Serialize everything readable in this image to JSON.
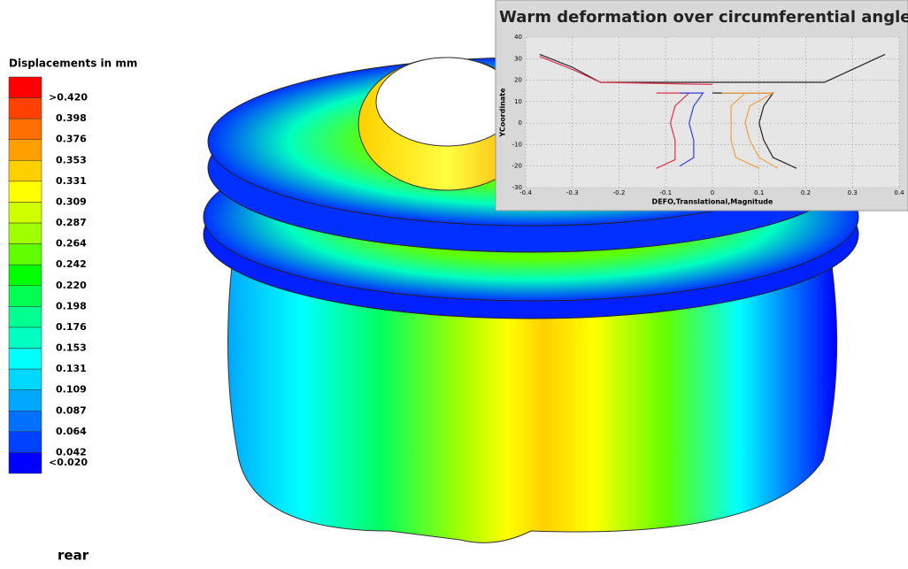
{
  "legend": {
    "title": "Displacements in mm",
    "labels": [
      ">0.420",
      "0.398",
      "0.376",
      "0.353",
      "0.331",
      "0.309",
      "0.287",
      "0.264",
      "0.242",
      "0.220",
      "0.198",
      "0.176",
      "0.153",
      "0.131",
      "0.109",
      "0.087",
      "0.064",
      "0.042",
      "<0.020"
    ],
    "colors": [
      "#ff0000",
      "#ff4000",
      "#ff7000",
      "#ffa000",
      "#ffd000",
      "#ffff00",
      "#d0ff00",
      "#a0ff00",
      "#60ff00",
      "#00ff00",
      "#00ff50",
      "#00ff90",
      "#00ffc0",
      "#00ffff",
      "#00d8ff",
      "#00a8ff",
      "#0070ff",
      "#0040ff",
      "#0000ff"
    ]
  },
  "view_label": "rear",
  "chart_data": {
    "type": "line",
    "title": "Warm deformation over circumferential angle",
    "xlabel": "DEFO,Translational,Magnitude",
    "ylabel": "YCoordinate",
    "xlim": [
      -0.4,
      0.4
    ],
    "ylim": [
      -30,
      40
    ],
    "xticks": [
      -0.4,
      -0.3,
      -0.2,
      -0.1,
      0,
      0.1,
      0.2,
      0.3,
      0.4
    ],
    "yticks": [
      -30,
      -20,
      -10,
      0,
      10,
      20,
      30,
      40
    ],
    "grid": true,
    "series": [
      {
        "color": "#222222",
        "x": [
          -0.37,
          -0.3,
          -0.24,
          0,
          0.24,
          0.3,
          0.37
        ],
        "values": [
          32,
          26,
          19,
          19,
          19,
          25,
          32
        ]
      },
      {
        "color": "#e0304a",
        "x": [
          -0.37,
          -0.3,
          -0.24,
          0
        ],
        "values": [
          31,
          25,
          19,
          18
        ]
      },
      {
        "color": "#222222",
        "x": [
          0,
          0.13,
          0.11,
          0.1,
          0.11,
          0.13,
          0.18
        ],
        "values": [
          14,
          14,
          8,
          0,
          -8,
          -16,
          -21
        ]
      },
      {
        "color": "#e0304a",
        "x": [
          -0.12,
          -0.05,
          -0.08,
          -0.09,
          -0.08,
          -0.08,
          -0.12
        ],
        "values": [
          14,
          14,
          8,
          0,
          -8,
          -17,
          -21
        ]
      },
      {
        "color": "#3040e0",
        "x": [
          -0.07,
          -0.02,
          -0.04,
          -0.05,
          -0.04,
          -0.04,
          -0.07
        ],
        "values": [
          14,
          14,
          8,
          0,
          -8,
          -16,
          -20
        ]
      },
      {
        "color": "#f0a040",
        "x": [
          0.02,
          0.07,
          0.04,
          0.04,
          0.04,
          0.05,
          0.1
        ],
        "values": [
          14,
          14,
          8,
          0,
          -8,
          -16,
          -21
        ]
      },
      {
        "color": "#f0a040",
        "x": [
          0.07,
          0.13,
          0.08,
          0.07,
          0.08,
          0.1,
          0.14
        ],
        "values": [
          14,
          14,
          8,
          0,
          -8,
          -16,
          -21
        ]
      }
    ]
  }
}
